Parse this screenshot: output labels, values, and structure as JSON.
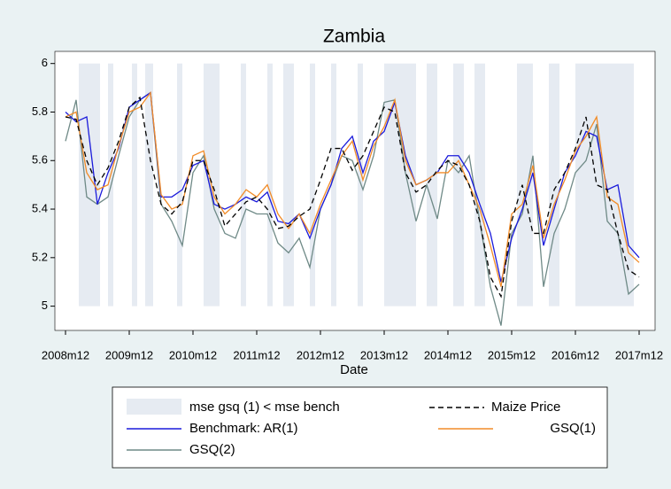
{
  "chart_data": {
    "type": "line",
    "title": "Zambia",
    "x_label": "Date",
    "x": [
      0,
      2,
      4,
      6,
      8,
      10,
      12,
      14,
      16,
      18,
      20,
      22,
      24,
      26,
      28,
      30,
      32,
      34,
      36,
      38,
      40,
      42,
      44,
      46,
      48,
      50,
      52,
      54,
      56,
      58,
      60,
      62,
      64,
      66,
      68,
      70,
      72,
      74,
      76,
      78,
      80,
      82,
      84,
      86,
      88,
      90,
      92,
      94,
      96,
      98,
      100,
      102,
      104,
      106,
      108
    ],
    "xlim": [
      -2,
      111
    ],
    "xticks": [
      {
        "value": 0,
        "label": "2008m12"
      },
      {
        "value": 12,
        "label": "2009m12"
      },
      {
        "value": 24,
        "label": "2010m12"
      },
      {
        "value": 36,
        "label": "2011m12"
      },
      {
        "value": 48,
        "label": "2012m12"
      },
      {
        "value": 60,
        "label": "2013m12"
      },
      {
        "value": 72,
        "label": "2014m12"
      },
      {
        "value": 84,
        "label": "2015m12"
      },
      {
        "value": 96,
        "label": "2016m12"
      },
      {
        "value": 108,
        "label": "2017m12"
      }
    ],
    "ylim": [
      4.9,
      6.05
    ],
    "yticks": [
      5,
      5.2,
      5.4,
      5.6,
      5.8,
      6
    ],
    "shade": {
      "name": "mse gsq (1) < mse bench",
      "color": "#e6ebf2",
      "ranges": [
        [
          2.5,
          6.5
        ],
        [
          8,
          9
        ],
        [
          12.5,
          13.5
        ],
        [
          15,
          16.5
        ],
        [
          21,
          22
        ],
        [
          26,
          29
        ],
        [
          33,
          34
        ],
        [
          38,
          39
        ],
        [
          41,
          43
        ],
        [
          46,
          47
        ],
        [
          50,
          51
        ],
        [
          55,
          56
        ],
        [
          60,
          66
        ],
        [
          68,
          70
        ],
        [
          73,
          75
        ],
        [
          77,
          79
        ],
        [
          85,
          88
        ],
        [
          91,
          93
        ],
        [
          96,
          107
        ]
      ]
    },
    "series": [
      {
        "name": "Maize Price",
        "color": "#000000",
        "dashed": true,
        "values": [
          5.78,
          5.77,
          5.6,
          5.5,
          5.57,
          5.68,
          5.82,
          5.86,
          5.6,
          5.42,
          5.38,
          5.43,
          5.6,
          5.6,
          5.48,
          5.33,
          5.38,
          5.43,
          5.45,
          5.4,
          5.32,
          5.33,
          5.37,
          5.4,
          5.52,
          5.65,
          5.65,
          5.56,
          5.62,
          5.72,
          5.82,
          5.8,
          5.55,
          5.47,
          5.5,
          5.56,
          5.6,
          5.58,
          5.5,
          5.35,
          5.12,
          5.04,
          5.35,
          5.5,
          5.3,
          5.3,
          5.48,
          5.55,
          5.65,
          5.78,
          5.5,
          5.48,
          5.3,
          5.15,
          5.12
        ]
      },
      {
        "name": "Benchmark: AR(1)",
        "color": "#1a1adb",
        "dashed": false,
        "values": [
          5.8,
          5.76,
          5.78,
          5.42,
          5.55,
          5.65,
          5.82,
          5.85,
          5.88,
          5.45,
          5.45,
          5.48,
          5.58,
          5.6,
          5.42,
          5.4,
          5.42,
          5.45,
          5.43,
          5.47,
          5.35,
          5.34,
          5.38,
          5.28,
          5.4,
          5.5,
          5.65,
          5.7,
          5.55,
          5.68,
          5.72,
          5.84,
          5.62,
          5.5,
          5.52,
          5.55,
          5.62,
          5.62,
          5.55,
          5.42,
          5.3,
          5.1,
          5.28,
          5.4,
          5.55,
          5.25,
          5.4,
          5.55,
          5.62,
          5.72,
          5.7,
          5.48,
          5.5,
          5.25,
          5.2
        ]
      },
      {
        "name": "GSQ(1)",
        "color": "#f28c28",
        "dashed": false,
        "values": [
          5.78,
          5.8,
          5.55,
          5.48,
          5.5,
          5.66,
          5.8,
          5.82,
          5.88,
          5.46,
          5.4,
          5.42,
          5.62,
          5.64,
          5.45,
          5.38,
          5.42,
          5.48,
          5.45,
          5.5,
          5.38,
          5.32,
          5.38,
          5.3,
          5.42,
          5.52,
          5.62,
          5.68,
          5.52,
          5.66,
          5.74,
          5.85,
          5.6,
          5.5,
          5.52,
          5.55,
          5.55,
          5.6,
          5.5,
          5.4,
          5.25,
          5.08,
          5.38,
          5.42,
          5.58,
          5.28,
          5.42,
          5.52,
          5.64,
          5.7,
          5.78,
          5.45,
          5.42,
          5.22,
          5.18
        ]
      },
      {
        "name": "GSQ(2)",
        "color": "#6f8a87",
        "dashed": false,
        "values": [
          5.68,
          5.85,
          5.45,
          5.42,
          5.45,
          5.62,
          5.78,
          5.85,
          5.88,
          5.42,
          5.35,
          5.25,
          5.55,
          5.62,
          5.4,
          5.3,
          5.28,
          5.4,
          5.38,
          5.38,
          5.26,
          5.22,
          5.28,
          5.16,
          5.4,
          5.5,
          5.62,
          5.6,
          5.48,
          5.62,
          5.84,
          5.85,
          5.55,
          5.35,
          5.5,
          5.36,
          5.6,
          5.55,
          5.62,
          5.35,
          5.08,
          4.92,
          5.3,
          5.38,
          5.62,
          5.08,
          5.3,
          5.4,
          5.55,
          5.6,
          5.75,
          5.35,
          5.3,
          5.05,
          5.09
        ]
      }
    ]
  }
}
